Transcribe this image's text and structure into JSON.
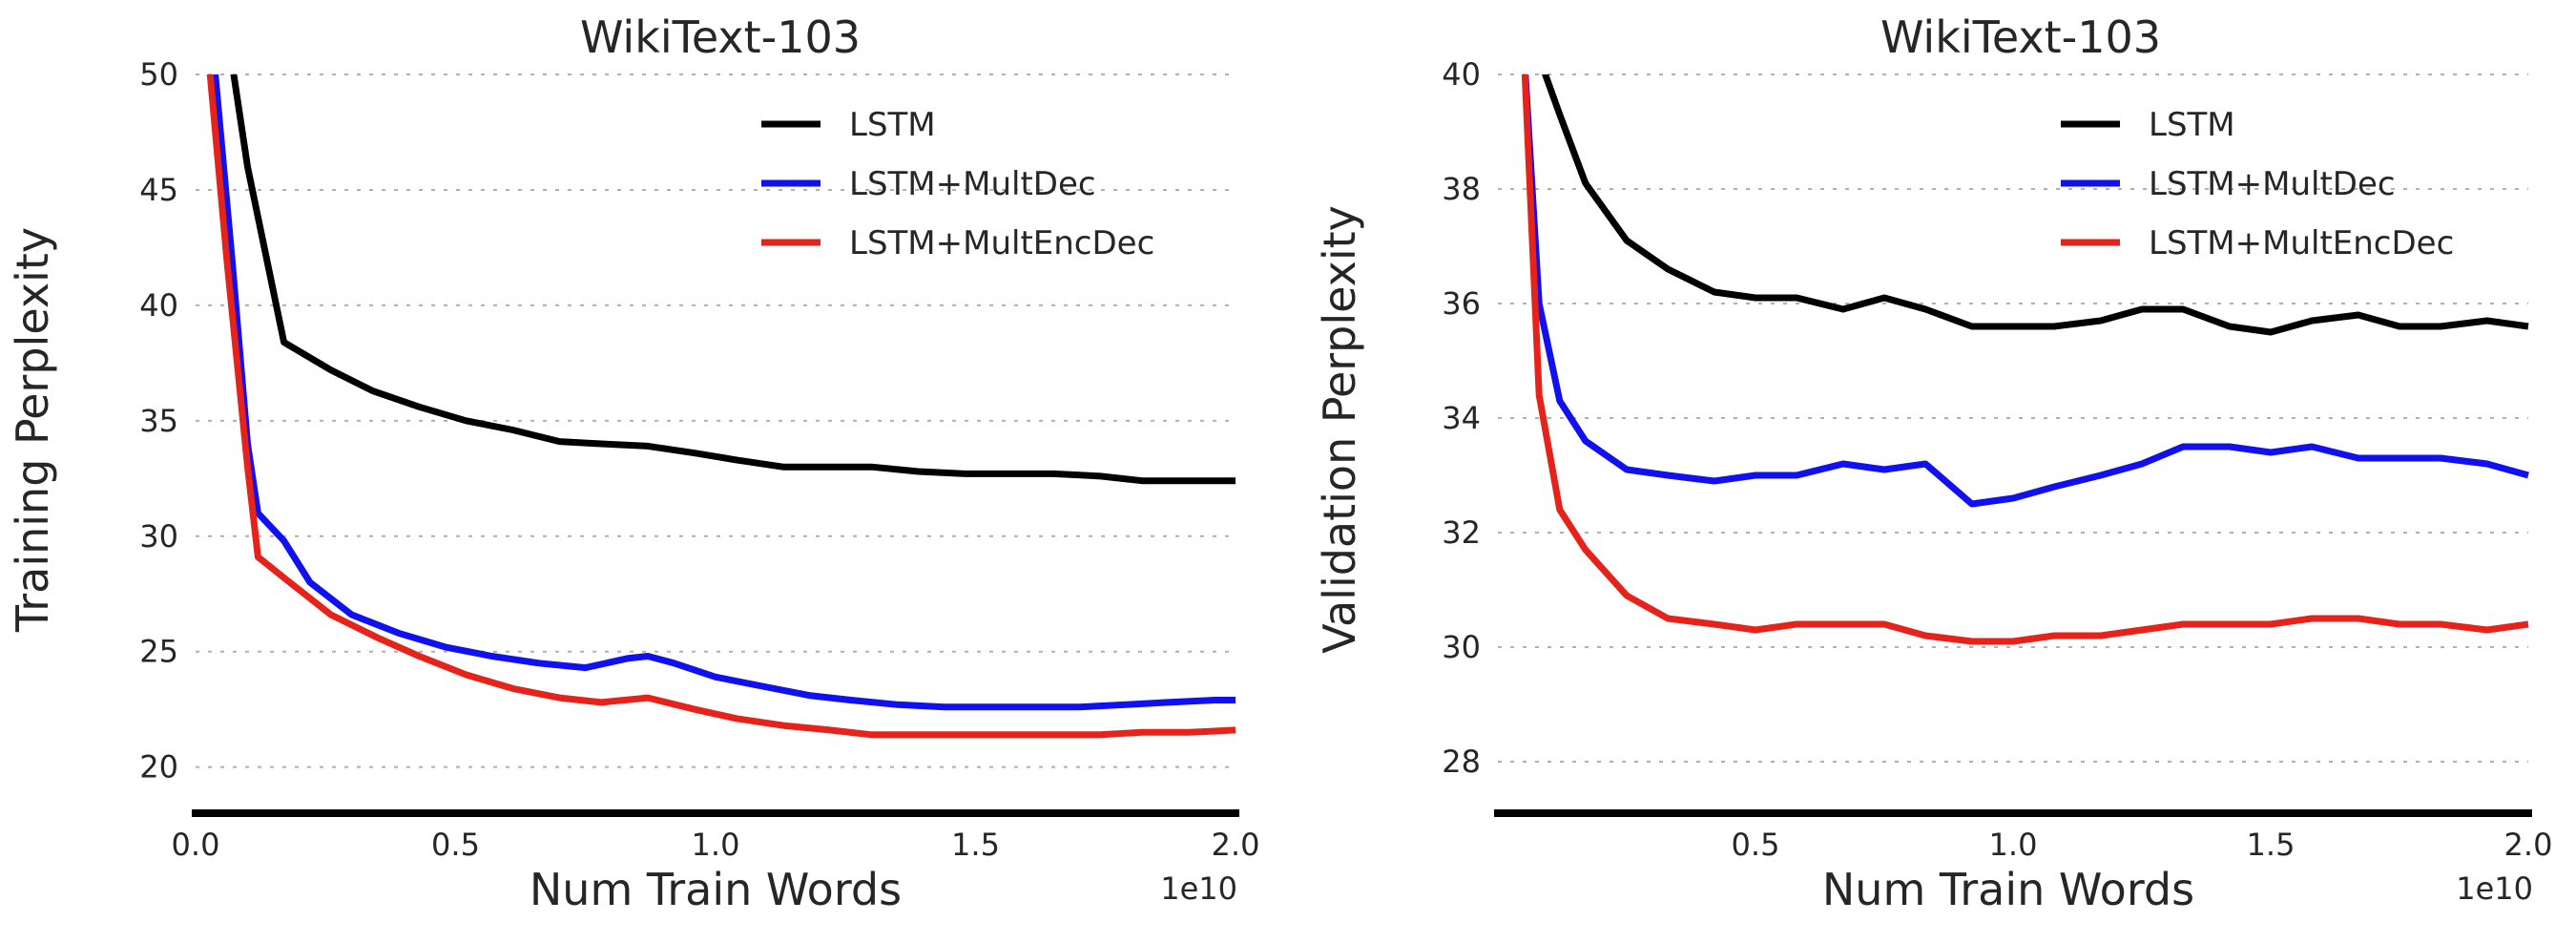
{
  "chart_data": [
    {
      "type": "line",
      "title": "WikiText-103",
      "xlabel": "Num Train Words",
      "ylabel": "Training Perplexity",
      "x_offset_label": "1e10",
      "xlim": [
        0.0,
        2.0
      ],
      "ylim": [
        18,
        50
      ],
      "xticks": [
        "0.0",
        "0.5",
        "1.0",
        "1.5",
        "2.0"
      ],
      "xtick_values": [
        0.0,
        0.5,
        1.0,
        1.5,
        2.0
      ],
      "yticks": [
        "20",
        "25",
        "30",
        "35",
        "40",
        "45",
        "50"
      ],
      "ytick_values": [
        20,
        25,
        30,
        35,
        40,
        45,
        50
      ],
      "grid": "horizontal dashed",
      "legend_position": "top-right",
      "series": [
        {
          "name": "LSTM",
          "color": "#000000",
          "x": [
            0.06,
            0.1,
            0.17,
            0.26,
            0.34,
            0.43,
            0.52,
            0.61,
            0.7,
            0.78,
            0.87,
            0.96,
            1.04,
            1.13,
            1.22,
            1.3,
            1.39,
            1.48,
            1.56,
            1.65,
            1.74,
            1.82,
            1.91,
            2.0
          ],
          "y": [
            52,
            46,
            38.4,
            37.2,
            36.3,
            35.6,
            35.0,
            34.6,
            34.1,
            34.0,
            33.9,
            33.6,
            33.3,
            33.0,
            33.0,
            33.0,
            32.8,
            32.7,
            32.7,
            32.7,
            32.6,
            32.4,
            32.4,
            32.4
          ]
        },
        {
          "name": "LSTM+MultDec",
          "color": "#1010f0",
          "x": [
            0.03,
            0.07,
            0.1,
            0.12,
            0.17,
            0.22,
            0.3,
            0.39,
            0.48,
            0.57,
            0.66,
            0.75,
            0.83,
            0.87,
            0.92,
            1.0,
            1.09,
            1.18,
            1.26,
            1.35,
            1.44,
            1.53,
            1.61,
            1.7,
            1.79,
            1.87,
            1.96,
            2.0
          ],
          "y": [
            52,
            42,
            34,
            31,
            29.8,
            28.0,
            26.6,
            25.8,
            25.2,
            24.8,
            24.5,
            24.3,
            24.7,
            24.8,
            24.5,
            23.9,
            23.5,
            23.1,
            22.9,
            22.7,
            22.6,
            22.6,
            22.6,
            22.6,
            22.7,
            22.8,
            22.9,
            22.9
          ]
        },
        {
          "name": "LSTM+MultEncDec",
          "color": "#e6231a",
          "x": [
            0.02,
            0.06,
            0.1,
            0.12,
            0.17,
            0.26,
            0.35,
            0.43,
            0.52,
            0.61,
            0.7,
            0.78,
            0.87,
            0.96,
            1.04,
            1.13,
            1.22,
            1.3,
            1.39,
            1.48,
            1.56,
            1.65,
            1.74,
            1.82,
            1.91,
            2.0
          ],
          "y": [
            52,
            42,
            33,
            29.1,
            28.2,
            26.6,
            25.6,
            24.8,
            24.0,
            23.4,
            23.0,
            22.8,
            23.0,
            22.5,
            22.1,
            21.8,
            21.6,
            21.4,
            21.4,
            21.4,
            21.4,
            21.4,
            21.4,
            21.5,
            21.5,
            21.6
          ]
        }
      ]
    },
    {
      "type": "line",
      "title": "WikiText-103",
      "xlabel": "Num Train Words",
      "ylabel": "Validation Perplexity",
      "x_offset_label": "1e10",
      "xlim": [
        0.0,
        2.0
      ],
      "ylim": [
        27.1,
        40
      ],
      "xticks": [
        "0.5",
        "1.0",
        "1.5",
        "2.0"
      ],
      "xtick_values": [
        0.5,
        1.0,
        1.5,
        2.0
      ],
      "yticks": [
        "28",
        "30",
        "32",
        "34",
        "36",
        "38",
        "40"
      ],
      "ytick_values": [
        28,
        30,
        32,
        34,
        36,
        38,
        40
      ],
      "grid": "horizontal dashed",
      "legend_position": "top-right",
      "series": [
        {
          "name": "LSTM",
          "color": "#000000",
          "x": [
            0.08,
            0.12,
            0.17,
            0.25,
            0.33,
            0.42,
            0.5,
            0.58,
            0.67,
            0.75,
            0.83,
            0.92,
            1.0,
            1.08,
            1.17,
            1.25,
            1.33,
            1.42,
            1.5,
            1.58,
            1.67,
            1.75,
            1.83,
            1.92,
            2.0
          ],
          "y": [
            40.3,
            39.3,
            38.1,
            37.1,
            36.6,
            36.2,
            36.1,
            36.1,
            35.9,
            36.1,
            35.9,
            35.6,
            35.6,
            35.6,
            35.7,
            35.9,
            35.9,
            35.6,
            35.5,
            35.7,
            35.8,
            35.6,
            35.6,
            35.7,
            35.6
          ]
        },
        {
          "name": "LSTM+MultDec",
          "color": "#1010f0",
          "x": [
            0.05,
            0.08,
            0.12,
            0.17,
            0.25,
            0.33,
            0.42,
            0.5,
            0.58,
            0.67,
            0.75,
            0.83,
            0.92,
            1.0,
            1.08,
            1.17,
            1.25,
            1.33,
            1.42,
            1.5,
            1.58,
            1.67,
            1.75,
            1.83,
            1.92,
            2.0
          ],
          "y": [
            40.5,
            36.0,
            34.3,
            33.6,
            33.1,
            33.0,
            32.9,
            33.0,
            33.0,
            33.2,
            33.1,
            33.2,
            32.5,
            32.6,
            32.8,
            33.0,
            33.2,
            33.5,
            33.5,
            33.4,
            33.5,
            33.3,
            33.3,
            33.3,
            33.2,
            33.0
          ]
        },
        {
          "name": "LSTM+MultEncDec",
          "color": "#e6231a",
          "x": [
            0.05,
            0.08,
            0.12,
            0.17,
            0.25,
            0.33,
            0.42,
            0.5,
            0.58,
            0.67,
            0.75,
            0.83,
            0.92,
            1.0,
            1.08,
            1.17,
            1.25,
            1.33,
            1.42,
            1.5,
            1.58,
            1.67,
            1.75,
            1.83,
            1.92,
            2.0
          ],
          "y": [
            40.5,
            34.4,
            32.4,
            31.7,
            30.9,
            30.5,
            30.4,
            30.3,
            30.4,
            30.4,
            30.4,
            30.2,
            30.1,
            30.1,
            30.2,
            30.2,
            30.3,
            30.4,
            30.4,
            30.4,
            30.5,
            30.5,
            30.4,
            30.4,
            30.3,
            30.4
          ]
        }
      ]
    }
  ]
}
